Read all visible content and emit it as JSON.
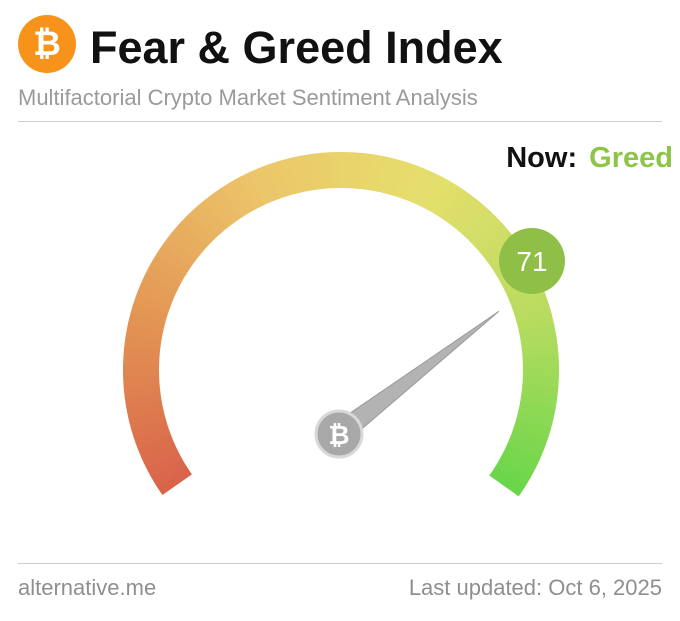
{
  "header": {
    "title": "Fear & Greed Index",
    "subtitle": "Multifactorial Crypto Market Sentiment Analysis",
    "logo_icon": "bitcoin-icon",
    "logo_glyph": "₿"
  },
  "status": {
    "now_label": "Now:",
    "classification": "Greed"
  },
  "chart_data": {
    "type": "gauge",
    "value": 71,
    "value_label": "71",
    "range": [
      0,
      100
    ],
    "classification": "Greed",
    "gradient_colors": [
      "#d9644a",
      "#e39654",
      "#ecc56a",
      "#e6df6c",
      "#b8dc60",
      "#6cd64a"
    ]
  },
  "colors": {
    "brand_orange": "#f7931a",
    "greed_green": "#8ec549",
    "value_badge": "#8fbf46",
    "needle": "#b3b3b3",
    "hub": "#a8a8a8"
  },
  "footer": {
    "source": "alternative.me",
    "last_updated": "Last updated: Oct 6, 2025"
  }
}
